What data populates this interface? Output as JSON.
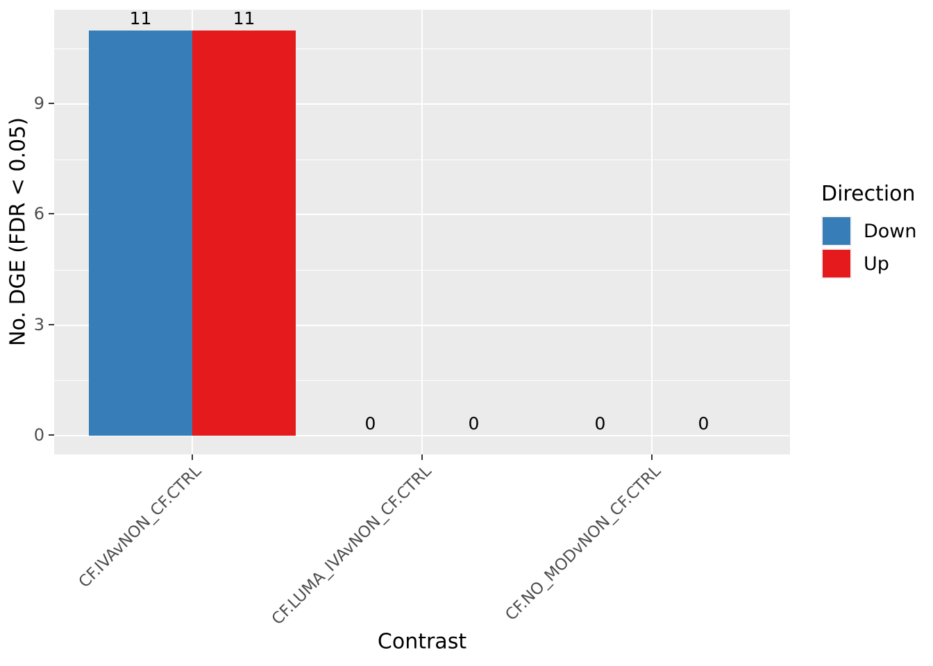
{
  "chart_data": {
    "type": "bar",
    "title": "",
    "xlabel": "Contrast",
    "ylabel": "No. DGE (FDR < 0.05)",
    "categories": [
      "CF.IVAvNON_CF.CTRL",
      "CF.LUMA_IVAvNON_CF.CTRL",
      "CF.NO_MODvNON_CF.CTRL"
    ],
    "series": [
      {
        "name": "Down",
        "color": "#377EB8",
        "values": [
          11,
          0,
          0
        ]
      },
      {
        "name": "Up",
        "color": "#E41A1C",
        "values": [
          11,
          0,
          0
        ]
      }
    ],
    "bar_layout": "dodge",
    "value_labels_shown": true,
    "yticks": [
      "0",
      "3",
      "6",
      "9"
    ],
    "ylim": [
      0,
      11.6
    ],
    "grid": true,
    "legend_title": "Direction",
    "legend_position": "right",
    "colors": {
      "panel_background": "#EBEBEB",
      "gridline": "#FFFFFF",
      "tick_label_text": "#4D4D4D",
      "axis_title_text": "#000000",
      "down_fill": "#377EB8",
      "up_fill": "#E41A1C",
      "legend_key_background": "#F2F2F2"
    }
  }
}
